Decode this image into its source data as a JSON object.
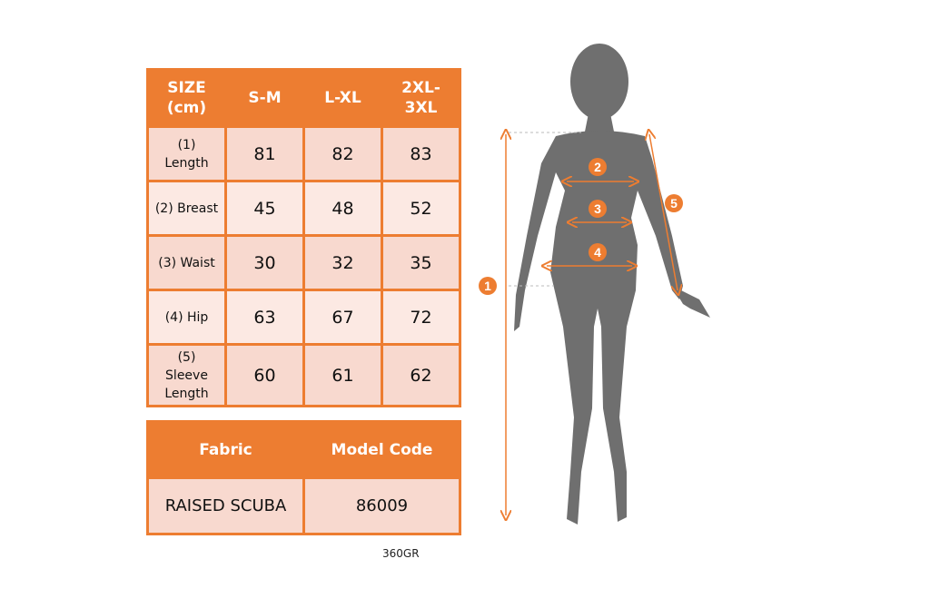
{
  "colors": {
    "accent": "#ed7d31",
    "row_dark": "#f8d9cf",
    "row_light": "#fce9e3",
    "silhouette": "#6f6f6f"
  },
  "header": [
    "SIZE (cm)",
    "S-M",
    "L-XL",
    "2XL- 3XL"
  ],
  "rows": [
    {
      "label": "(1) Length",
      "values": [
        "81",
        "82",
        "83"
      ]
    },
    {
      "label": "(2) Breast",
      "values": [
        "45",
        "48",
        "52"
      ]
    },
    {
      "label": "(3) Waist",
      "values": [
        "30",
        "32",
        "35"
      ]
    },
    {
      "label": "(4) Hip",
      "values": [
        "63",
        "67",
        "72"
      ]
    },
    {
      "label": "(5) Sleeve Length",
      "values": [
        "60",
        "61",
        "62"
      ]
    }
  ],
  "fabric": {
    "fabric_label": "Fabric",
    "model_label": "Model Code",
    "fabric_value": "RAISED SCUBA",
    "model_value": "86009"
  },
  "note": "360GR",
  "markers": [
    "1",
    "2",
    "3",
    "4",
    "5"
  ]
}
